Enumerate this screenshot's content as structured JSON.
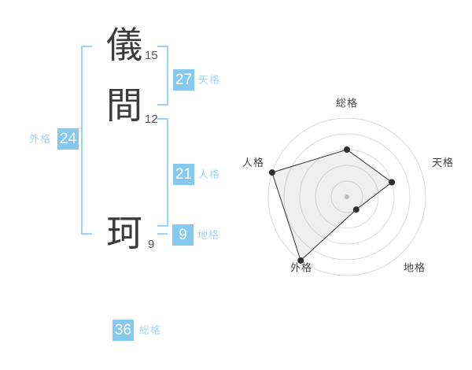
{
  "name_display": {
    "characters": [
      {
        "char": "儀",
        "strokes": "15"
      },
      {
        "char": "間",
        "strokes": "12"
      },
      {
        "char": "珂",
        "strokes": "9"
      }
    ],
    "badges": {
      "tenkaku": {
        "value": "27",
        "label": "天格"
      },
      "jinkaku": {
        "value": "21",
        "label": "人格"
      },
      "chikaku": {
        "value": "9",
        "label": "地格"
      },
      "gaikaku": {
        "value": "24",
        "label": "外格"
      },
      "soukaku": {
        "value": "36",
        "label": "総格"
      }
    }
  },
  "chart_data": {
    "type": "radar",
    "axes": [
      "総格",
      "天格",
      "地格",
      "外格",
      "人格"
    ],
    "values": [
      3,
      3,
      1,
      5,
      5
    ],
    "max": 5,
    "rings": 5,
    "start_angle_deg": 90,
    "direction": "clockwise",
    "legend": "none",
    "grid": "circular"
  },
  "colors": {
    "badge_bg": "#85C9F0",
    "badge_text": "#FFFFFF",
    "kaku_label": "#A3D6F6",
    "bracket": "#9FD3F2",
    "kanji": "#3B3B3B",
    "stroke_number": "#555555",
    "radar_ring": "#D9D9D9",
    "radar_polygon_fill": "rgba(120,120,120,0.12)",
    "radar_polygon_stroke": "#2E2E2E",
    "radar_dot": "#2E2E2E",
    "radar_center_dot": "#BBBBBB",
    "radar_label": "#444444"
  }
}
